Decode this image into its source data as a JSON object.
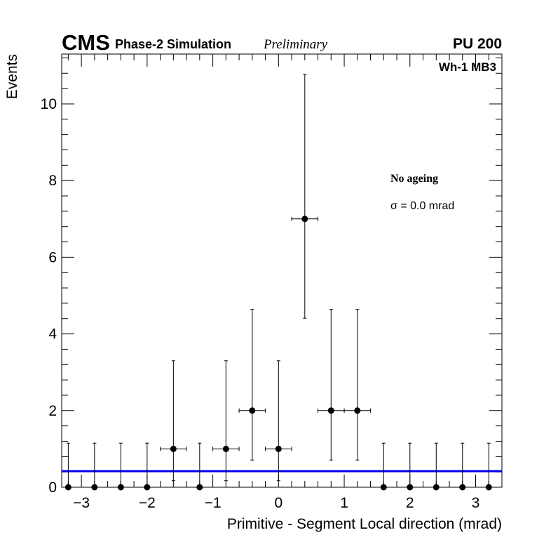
{
  "header": {
    "cms": "CMS",
    "simulation": "Phase-2 Simulation",
    "preliminary": "Preliminary",
    "pileup": "PU 200"
  },
  "chart_data": {
    "type": "scatter",
    "subtype": "histogram-points-with-error-bars",
    "title": "",
    "xlabel": "Primitive - Segment Local direction (mrad)",
    "ylabel": "Events",
    "xlim": [
      -3.3,
      3.4
    ],
    "ylim": [
      0,
      11.3
    ],
    "x_ticks": [
      -3,
      -2,
      -1,
      0,
      1,
      2,
      3
    ],
    "x_tick_labels": [
      "−3",
      "−2",
      "−1",
      "0",
      "1",
      "2",
      "3"
    ],
    "y_ticks": [
      0,
      2,
      4,
      6,
      8,
      10
    ],
    "y_tick_labels": [
      "0",
      "2",
      "4",
      "6",
      "8",
      "10"
    ],
    "bin_width": 0.4,
    "series": [
      {
        "name": "Wh-1 MB3",
        "x": [
          -3.2,
          -2.8,
          -2.4,
          -2.0,
          -1.6,
          -1.2,
          -0.8,
          -0.4,
          0.0,
          0.4,
          0.8,
          1.2,
          1.6,
          2.0,
          2.4,
          2.8,
          3.2
        ],
        "y": [
          0,
          0,
          0,
          0,
          1,
          0,
          1,
          2,
          1,
          7,
          2,
          2,
          0,
          0,
          0,
          0,
          0
        ],
        "y_low": [
          0,
          0,
          0,
          0,
          0.17,
          0,
          0.17,
          0.71,
          0.17,
          4.41,
          0.71,
          0.71,
          0,
          0,
          0,
          0,
          0
        ],
        "y_high": [
          1.15,
          1.15,
          1.15,
          1.15,
          3.3,
          1.15,
          3.3,
          4.64,
          3.3,
          10.77,
          4.64,
          4.64,
          1.15,
          1.15,
          1.15,
          1.15,
          1.15
        ]
      }
    ],
    "fit_line": {
      "name": "constant",
      "y": 0.42,
      "color": "#0000ee"
    },
    "annotations": {
      "region": "Wh-1 MB3",
      "ageing": "No ageing",
      "sigma": "σ = 0.0 mrad"
    }
  }
}
